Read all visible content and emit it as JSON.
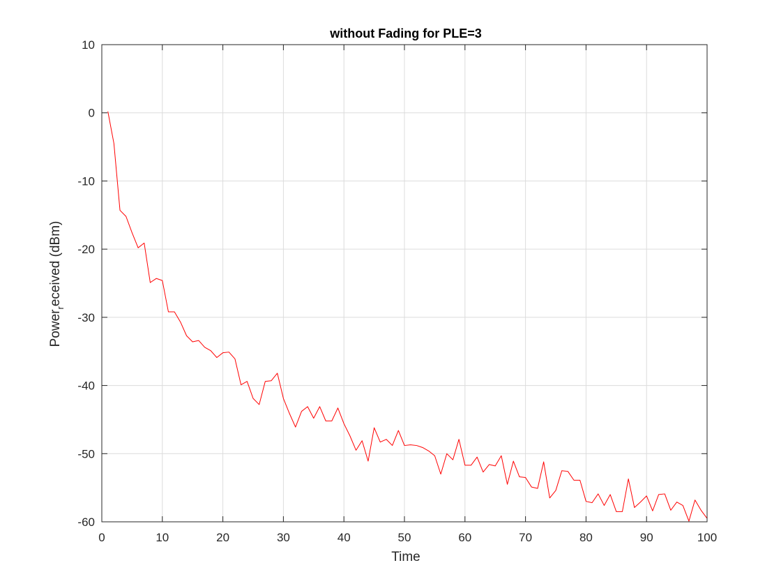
{
  "chart_data": {
    "type": "line",
    "title": "without Fading for PLE=3",
    "xlabel": "Time",
    "ylabel": {
      "main": "Power",
      "subscript": "r",
      "rest": "eceived (dBm)"
    },
    "xlim": [
      0,
      100
    ],
    "ylim": [
      -60,
      10
    ],
    "xticks": [
      0,
      10,
      20,
      30,
      40,
      50,
      60,
      70,
      80,
      90,
      100
    ],
    "yticks": [
      -60,
      -50,
      -40,
      -30,
      -20,
      -10,
      0,
      10
    ],
    "grid": true,
    "series": [
      {
        "color": "#ff0000",
        "x": [
          1,
          2,
          3,
          4,
          5,
          6,
          7,
          8,
          9,
          10,
          11,
          12,
          13,
          14,
          15,
          16,
          17,
          18,
          19,
          20,
          21,
          22,
          23,
          24,
          25,
          26,
          27,
          28,
          29,
          30,
          31,
          32,
          33,
          34,
          35,
          36,
          37,
          38,
          39,
          40,
          41,
          42,
          43,
          44,
          45,
          46,
          47,
          48,
          49,
          50,
          51,
          52,
          53,
          54,
          55,
          56,
          57,
          58,
          59,
          60,
          61,
          62,
          63,
          64,
          65,
          66,
          67,
          68,
          69,
          70,
          71,
          72,
          73,
          74,
          75,
          76,
          77,
          78,
          79,
          80,
          81,
          82,
          83,
          84,
          85,
          86,
          87,
          88,
          89,
          90,
          91,
          92,
          93,
          94,
          95,
          96,
          97,
          98,
          99,
          100
        ],
        "y": [
          0.2,
          -4.5,
          -14.3,
          -15.2,
          -17.6,
          -19.8,
          -19.1,
          -24.9,
          -24.3,
          -24.6,
          -29.2,
          -29.2,
          -30.7,
          -32.7,
          -33.6,
          -33.4,
          -34.4,
          -34.9,
          -35.9,
          -35.2,
          -35.1,
          -36.1,
          -39.9,
          -39.4,
          -41.9,
          -42.8,
          -39.4,
          -39.3,
          -38.2,
          -41.9,
          -44.1,
          -46.1,
          -43.8,
          -43.1,
          -44.8,
          -43.1,
          -45.2,
          -45.2,
          -43.3,
          -45.6,
          -47.4,
          -49.5,
          -48.1,
          -51.1,
          -46.2,
          -48.3,
          -47.9,
          -48.8,
          -46.6,
          -48.8,
          -48.7,
          -48.8,
          -49.1,
          -49.6,
          -50.3,
          -53.0,
          -50.0,
          -50.9,
          -47.9,
          -51.7,
          -51.7,
          -50.5,
          -52.7,
          -51.6,
          -51.8,
          -50.3,
          -54.5,
          -51.1,
          -53.4,
          -53.5,
          -54.9,
          -55.1,
          -51.2,
          -56.5,
          -55.4,
          -52.5,
          -52.6,
          -53.9,
          -53.9,
          -57.0,
          -57.2,
          -55.9,
          -57.6,
          -56.0,
          -58.5,
          -58.5,
          -53.7,
          -57.9,
          -57.1,
          -56.2,
          -58.4,
          -56.0,
          -55.9,
          -58.3,
          -57.1,
          -57.6,
          -59.9,
          -56.8,
          -58.3,
          -59.5
        ]
      }
    ]
  }
}
